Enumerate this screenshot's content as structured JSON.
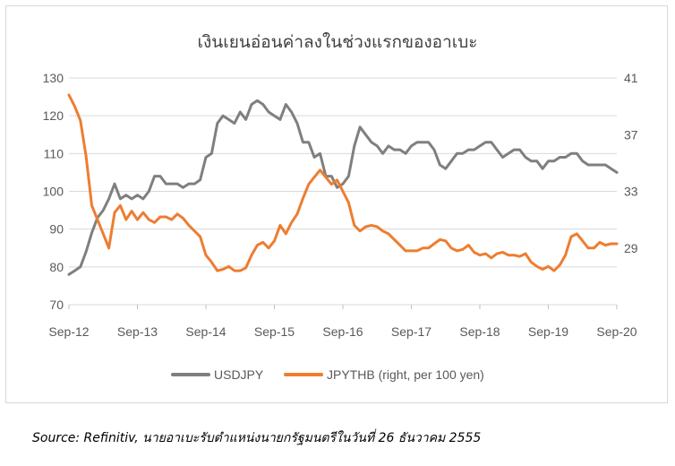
{
  "chart_data": {
    "type": "line",
    "title": "เงินเยนอ่อนค่าลงในช่วงแรกของอาเบะ",
    "x_ticks": [
      "Sep-12",
      "Sep-13",
      "Sep-14",
      "Sep-15",
      "Sep-16",
      "Sep-17",
      "Sep-18",
      "Sep-19",
      "Sep-20"
    ],
    "y_left": {
      "ticks": [
        70,
        80,
        90,
        100,
        110,
        120,
        130
      ],
      "lim": [
        70,
        130
      ]
    },
    "y_right": {
      "ticks": [
        27,
        29,
        33,
        37,
        41
      ],
      "tick_labels": [
        "",
        "29",
        "33",
        "37",
        "41"
      ],
      "lim": [
        25,
        41
      ]
    },
    "grid": "horizontal",
    "legend_position": "bottom",
    "series": [
      {
        "name": "USDJPY",
        "axis": "left",
        "color": "#7f7f7f",
        "x": [
          "2012-09",
          "2012-10",
          "2012-11",
          "2012-12",
          "2013-01",
          "2013-02",
          "2013-03",
          "2013-04",
          "2013-05",
          "2013-06",
          "2013-07",
          "2013-08",
          "2013-09",
          "2013-10",
          "2013-11",
          "2013-12",
          "2014-01",
          "2014-02",
          "2014-03",
          "2014-04",
          "2014-05",
          "2014-06",
          "2014-07",
          "2014-08",
          "2014-09",
          "2014-10",
          "2014-11",
          "2014-12",
          "2015-01",
          "2015-02",
          "2015-03",
          "2015-04",
          "2015-05",
          "2015-06",
          "2015-07",
          "2015-08",
          "2015-09",
          "2015-10",
          "2015-11",
          "2015-12",
          "2016-01",
          "2016-02",
          "2016-03",
          "2016-04",
          "2016-05",
          "2016-06",
          "2016-07",
          "2016-08",
          "2016-09",
          "2016-10",
          "2016-11",
          "2016-12",
          "2017-01",
          "2017-02",
          "2017-03",
          "2017-04",
          "2017-05",
          "2017-06",
          "2017-07",
          "2017-08",
          "2017-09",
          "2017-10",
          "2017-11",
          "2017-12",
          "2018-01",
          "2018-02",
          "2018-03",
          "2018-04",
          "2018-05",
          "2018-06",
          "2018-07",
          "2018-08",
          "2018-09",
          "2018-10",
          "2018-11",
          "2018-12",
          "2019-01",
          "2019-02",
          "2019-03",
          "2019-04",
          "2019-05",
          "2019-06",
          "2019-07",
          "2019-08",
          "2019-09",
          "2019-10",
          "2019-11",
          "2019-12",
          "2020-01",
          "2020-02",
          "2020-03",
          "2020-04",
          "2020-05",
          "2020-06",
          "2020-07",
          "2020-08",
          "2020-09"
        ],
        "values": [
          78,
          79,
          80,
          84,
          89,
          93,
          95,
          98,
          102,
          98,
          99,
          98,
          99,
          98,
          100,
          104,
          104,
          102,
          102,
          102,
          101,
          102,
          102,
          103,
          109,
          110,
          118,
          120,
          119,
          118,
          121,
          119,
          123,
          124,
          123,
          121,
          120,
          119,
          123,
          121,
          118,
          113,
          113,
          109,
          110,
          104,
          104,
          101,
          102,
          104,
          112,
          117,
          115,
          113,
          112,
          110,
          112,
          111,
          111,
          110,
          112,
          113,
          113,
          113,
          111,
          107,
          106,
          108,
          110,
          110,
          111,
          111,
          112,
          113,
          113,
          111,
          109,
          110,
          111,
          111,
          109,
          108,
          108,
          106,
          108,
          108,
          109,
          109,
          110,
          110,
          108,
          107,
          107,
          107,
          107,
          106,
          105
        ]
      },
      {
        "name": "JPYTHB (right, per 100 yen)",
        "axis": "right",
        "color": "#ed7d31",
        "x": [
          "2012-09",
          "2012-10",
          "2012-11",
          "2012-12",
          "2013-01",
          "2013-02",
          "2013-03",
          "2013-04",
          "2013-05",
          "2013-06",
          "2013-07",
          "2013-08",
          "2013-09",
          "2013-10",
          "2013-11",
          "2013-12",
          "2014-01",
          "2014-02",
          "2014-03",
          "2014-04",
          "2014-05",
          "2014-06",
          "2014-07",
          "2014-08",
          "2014-09",
          "2014-10",
          "2014-11",
          "2014-12",
          "2015-01",
          "2015-02",
          "2015-03",
          "2015-04",
          "2015-05",
          "2015-06",
          "2015-07",
          "2015-08",
          "2015-09",
          "2015-10",
          "2015-11",
          "2015-12",
          "2016-01",
          "2016-02",
          "2016-03",
          "2016-04",
          "2016-05",
          "2016-06",
          "2016-07",
          "2016-08",
          "2016-09",
          "2016-10",
          "2016-11",
          "2016-12",
          "2017-01",
          "2017-02",
          "2017-03",
          "2017-04",
          "2017-05",
          "2017-06",
          "2017-07",
          "2017-08",
          "2017-09",
          "2017-10",
          "2017-11",
          "2017-12",
          "2018-01",
          "2018-02",
          "2018-03",
          "2018-04",
          "2018-05",
          "2018-06",
          "2018-07",
          "2018-08",
          "2018-09",
          "2018-10",
          "2018-11",
          "2018-12",
          "2019-01",
          "2019-02",
          "2019-03",
          "2019-04",
          "2019-05",
          "2019-06",
          "2019-07",
          "2019-08",
          "2019-09",
          "2019-10",
          "2019-11",
          "2019-12",
          "2020-01",
          "2020-02",
          "2020-03",
          "2020-04",
          "2020-05",
          "2020-06",
          "2020-07",
          "2020-08",
          "2020-09"
        ],
        "values": [
          39.8,
          39.0,
          38.0,
          35.5,
          32.0,
          31.0,
          30.0,
          29.0,
          31.5,
          32.0,
          31.0,
          31.6,
          31.0,
          31.5,
          31.0,
          30.8,
          31.2,
          31.2,
          31.0,
          31.4,
          31.1,
          30.6,
          30.2,
          29.8,
          28.5,
          28.0,
          27.4,
          27.5,
          27.7,
          27.4,
          27.4,
          27.6,
          28.5,
          29.2,
          29.4,
          29.0,
          29.5,
          30.6,
          30.0,
          30.8,
          31.4,
          32.5,
          33.5,
          34.0,
          34.5,
          34.0,
          33.5,
          33.8,
          33.0,
          32.2,
          30.6,
          30.2,
          30.5,
          30.6,
          30.5,
          30.2,
          30.0,
          29.6,
          29.2,
          28.8,
          28.8,
          28.8,
          29.0,
          29.0,
          29.3,
          29.6,
          29.5,
          29.0,
          28.8,
          28.9,
          29.2,
          28.7,
          28.5,
          28.6,
          28.3,
          28.6,
          28.7,
          28.5,
          28.5,
          28.4,
          28.6,
          28.0,
          27.7,
          27.5,
          27.7,
          27.4,
          27.8,
          28.5,
          29.8,
          30.0,
          29.5,
          29.0,
          29.0,
          29.4,
          29.2,
          29.3,
          29.3
        ]
      }
    ]
  },
  "legend": {
    "items": [
      {
        "label": "USDJPY",
        "color": "#7f7f7f"
      },
      {
        "label": "JPYTHB (right, per 100 yen)",
        "color": "#ed7d31"
      }
    ]
  },
  "source": {
    "label": "Source: Refinitiv,",
    "note": "นายอาเบะรับตำแหน่งนายกรัฐมนตรีในวันที่ 26 ธันวาคม 2555"
  }
}
